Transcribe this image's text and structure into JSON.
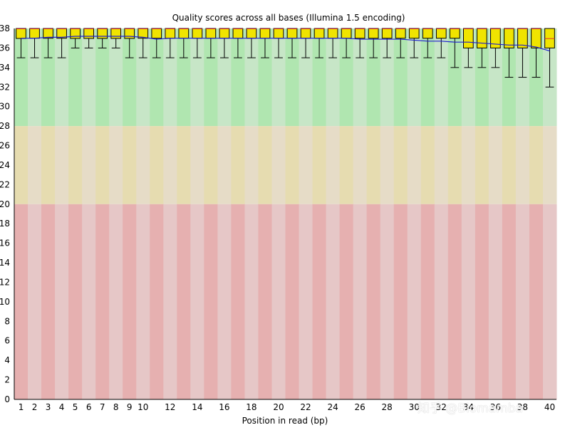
{
  "chart_data": {
    "type": "boxplot",
    "title": "Quality scores across all bases (Illumina 1.5 encoding)",
    "xlabel": "Position in read (bp)",
    "ylabel": "",
    "ylim": [
      0,
      38
    ],
    "y_ticks": [
      0,
      2,
      4,
      6,
      8,
      10,
      12,
      14,
      16,
      18,
      20,
      22,
      24,
      26,
      28,
      30,
      32,
      34,
      36,
      38
    ],
    "x_tick_labels": [
      "1",
      "2",
      "3",
      "4",
      "5",
      "6",
      "7",
      "8",
      "9",
      "10",
      "12",
      "14",
      "16",
      "18",
      "20",
      "22",
      "24",
      "26",
      "28",
      "30",
      "32",
      "34",
      "36",
      "38",
      "40"
    ],
    "zones": [
      {
        "name": "good",
        "from": 28,
        "to": 38,
        "colors": [
          "#b0e6b0",
          "#c7e6c7"
        ]
      },
      {
        "name": "reasonable",
        "from": 20,
        "to": 28,
        "colors": [
          "#e6dcb0",
          "#e6dcc7"
        ]
      },
      {
        "name": "poor",
        "from": 0,
        "to": 20,
        "colors": [
          "#e6b0b0",
          "#e6c7c7"
        ]
      }
    ],
    "series": [
      {
        "name": "boxes",
        "color": "#f0e400",
        "median_color": "#e03030",
        "boxes": [
          {
            "pos": 1,
            "lw": 35,
            "q1": 38,
            "med": 38,
            "q3": 38,
            "uw": 38
          },
          {
            "pos": 2,
            "lw": 35,
            "q1": 37,
            "med": 38,
            "q3": 38,
            "uw": 38
          },
          {
            "pos": 3,
            "lw": 35,
            "q1": 37,
            "med": 38,
            "q3": 38,
            "uw": 38
          },
          {
            "pos": 4,
            "lw": 35,
            "q1": 37,
            "med": 38,
            "q3": 38,
            "uw": 38
          },
          {
            "pos": 5,
            "lw": 36,
            "q1": 38,
            "med": 38,
            "q3": 38,
            "uw": 38
          },
          {
            "pos": 6,
            "lw": 36,
            "q1": 38,
            "med": 38,
            "q3": 38,
            "uw": 38
          },
          {
            "pos": 7,
            "lw": 36,
            "q1": 38,
            "med": 38,
            "q3": 38,
            "uw": 38
          },
          {
            "pos": 8,
            "lw": 36,
            "q1": 38,
            "med": 38,
            "q3": 38,
            "uw": 38
          },
          {
            "pos": 9,
            "lw": 35,
            "q1": 38,
            "med": 38,
            "q3": 38,
            "uw": 38
          },
          {
            "pos": 10,
            "lw": 35,
            "q1": 37,
            "med": 38,
            "q3": 38,
            "uw": 38
          },
          {
            "pos": 11,
            "lw": 35,
            "q1": 37,
            "med": 38,
            "q3": 38,
            "uw": 38
          },
          {
            "pos": 12,
            "lw": 35,
            "q1": 37,
            "med": 38,
            "q3": 38,
            "uw": 38
          },
          {
            "pos": 13,
            "lw": 35,
            "q1": 37,
            "med": 38,
            "q3": 38,
            "uw": 38
          },
          {
            "pos": 14,
            "lw": 35,
            "q1": 37,
            "med": 38,
            "q3": 38,
            "uw": 38
          },
          {
            "pos": 15,
            "lw": 35,
            "q1": 37,
            "med": 38,
            "q3": 38,
            "uw": 38
          },
          {
            "pos": 16,
            "lw": 35,
            "q1": 37,
            "med": 38,
            "q3": 38,
            "uw": 38
          },
          {
            "pos": 17,
            "lw": 35,
            "q1": 37,
            "med": 38,
            "q3": 38,
            "uw": 38
          },
          {
            "pos": 18,
            "lw": 35,
            "q1": 37,
            "med": 38,
            "q3": 38,
            "uw": 38
          },
          {
            "pos": 19,
            "lw": 35,
            "q1": 37,
            "med": 38,
            "q3": 38,
            "uw": 38
          },
          {
            "pos": 20,
            "lw": 35,
            "q1": 37,
            "med": 38,
            "q3": 38,
            "uw": 38
          },
          {
            "pos": 21,
            "lw": 35,
            "q1": 37,
            "med": 38,
            "q3": 38,
            "uw": 38
          },
          {
            "pos": 22,
            "lw": 35,
            "q1": 37,
            "med": 38,
            "q3": 38,
            "uw": 38
          },
          {
            "pos": 23,
            "lw": 35,
            "q1": 37,
            "med": 38,
            "q3": 38,
            "uw": 38
          },
          {
            "pos": 24,
            "lw": 35,
            "q1": 37,
            "med": 38,
            "q3": 38,
            "uw": 38
          },
          {
            "pos": 25,
            "lw": 35,
            "q1": 37,
            "med": 38,
            "q3": 38,
            "uw": 38
          },
          {
            "pos": 26,
            "lw": 35,
            "q1": 37,
            "med": 38,
            "q3": 38,
            "uw": 38
          },
          {
            "pos": 27,
            "lw": 35,
            "q1": 37,
            "med": 38,
            "q3": 38,
            "uw": 38
          },
          {
            "pos": 28,
            "lw": 35,
            "q1": 37,
            "med": 38,
            "q3": 38,
            "uw": 38
          },
          {
            "pos": 29,
            "lw": 35,
            "q1": 37,
            "med": 38,
            "q3": 38,
            "uw": 38
          },
          {
            "pos": 30,
            "lw": 35,
            "q1": 37,
            "med": 38,
            "q3": 38,
            "uw": 38
          },
          {
            "pos": 31,
            "lw": 35,
            "q1": 37,
            "med": 38,
            "q3": 38,
            "uw": 38
          },
          {
            "pos": 32,
            "lw": 35,
            "q1": 37,
            "med": 38,
            "q3": 38,
            "uw": 38
          },
          {
            "pos": 33,
            "lw": 34,
            "q1": 37,
            "med": 38,
            "q3": 38,
            "uw": 38
          },
          {
            "pos": 34,
            "lw": 34,
            "q1": 36,
            "med": 38,
            "q3": 38,
            "uw": 38
          },
          {
            "pos": 35,
            "lw": 34,
            "q1": 36,
            "med": 38,
            "q3": 38,
            "uw": 38
          },
          {
            "pos": 36,
            "lw": 34,
            "q1": 36,
            "med": 38,
            "q3": 38,
            "uw": 38
          },
          {
            "pos": 37,
            "lw": 33,
            "q1": 36,
            "med": 38,
            "q3": 38,
            "uw": 38
          },
          {
            "pos": 38,
            "lw": 33,
            "q1": 36,
            "med": 38,
            "q3": 38,
            "uw": 38
          },
          {
            "pos": 39,
            "lw": 33,
            "q1": 36,
            "med": 38,
            "q3": 38,
            "uw": 38
          },
          {
            "pos": 40,
            "lw": 32,
            "q1": 36,
            "med": 37,
            "q3": 38,
            "uw": 38
          }
        ]
      },
      {
        "name": "mean",
        "color": "#1f1fd0",
        "values": [
          37.0,
          37.0,
          37.1,
          37.1,
          37.2,
          37.2,
          37.2,
          37.2,
          37.2,
          37.1,
          36.9,
          37.0,
          37.0,
          37.0,
          37.0,
          37.0,
          37.0,
          37.0,
          37.0,
          37.0,
          37.0,
          37.0,
          37.0,
          37.0,
          37.0,
          36.9,
          36.9,
          36.9,
          36.9,
          36.8,
          36.7,
          36.7,
          36.6,
          36.6,
          36.5,
          36.4,
          36.3,
          36.3,
          36.1,
          35.7
        ]
      }
    ]
  },
  "watermark": "知乎 @Biomamba"
}
